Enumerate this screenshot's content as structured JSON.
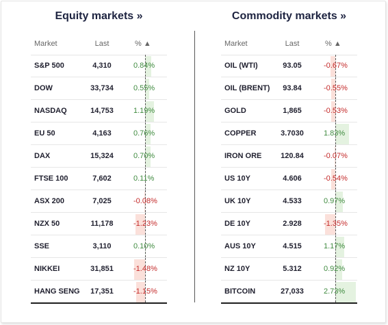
{
  "equity": {
    "title": "Equity markets »",
    "headers": {
      "market": "Market",
      "last": "Last",
      "pct": "% ▲"
    },
    "rows": [
      {
        "market": "S&P 500",
        "last": "4,310",
        "pct": "0.84%",
        "value": 0.84
      },
      {
        "market": "DOW",
        "last": "33,734",
        "pct": "0.55%",
        "value": 0.55
      },
      {
        "market": "NASDAQ",
        "last": "14,753",
        "pct": "1.19%",
        "value": 1.19
      },
      {
        "market": "EU 50",
        "last": "4,163",
        "pct": "0.76%",
        "value": 0.76
      },
      {
        "market": "DAX",
        "last": "15,324",
        "pct": "0.70%",
        "value": 0.7
      },
      {
        "market": "FTSE 100",
        "last": "7,602",
        "pct": "0.11%",
        "value": 0.11
      },
      {
        "market": "ASX 200",
        "last": "7,025",
        "pct": "-0.08%",
        "value": -0.08
      },
      {
        "market": "NZX 50",
        "last": "11,178",
        "pct": "-1.23%",
        "value": -1.23
      },
      {
        "market": "SSE",
        "last": "3,110",
        "pct": "0.10%",
        "value": 0.1
      },
      {
        "market": "NIKKEI",
        "last": "31,851",
        "pct": "-1.48%",
        "value": -1.48
      },
      {
        "market": "HANG SENG",
        "last": "17,351",
        "pct": "-1.15%",
        "value": -1.15
      }
    ]
  },
  "commodity": {
    "title": "Commodity markets »",
    "headers": {
      "market": "Market",
      "last": "Last",
      "pct": "% ▲"
    },
    "rows": [
      {
        "market": "OIL (WTI)",
        "last": "93.05",
        "pct": "-0.67%",
        "value": -0.67
      },
      {
        "market": "OIL (BRENT)",
        "last": "93.84",
        "pct": "-0.55%",
        "value": -0.55
      },
      {
        "market": "GOLD",
        "last": "1,865",
        "pct": "-0.53%",
        "value": -0.53
      },
      {
        "market": "COPPER",
        "last": "3.7030",
        "pct": "1.83%",
        "value": 1.83
      },
      {
        "market": "IRON ORE",
        "last": "120.84",
        "pct": "-0.07%",
        "value": -0.07
      },
      {
        "market": "US 10Y",
        "last": "4.606",
        "pct": "-0.54%",
        "value": -0.54
      },
      {
        "market": "UK 10Y",
        "last": "4.533",
        "pct": "0.97%",
        "value": 0.97
      },
      {
        "market": "DE 10Y",
        "last": "2.928",
        "pct": "-1.35%",
        "value": -1.35
      },
      {
        "market": "AUS 10Y",
        "last": "4.515",
        "pct": "1.17%",
        "value": 1.17
      },
      {
        "market": "NZ 10Y",
        "last": "5.312",
        "pct": "0.92%",
        "value": 0.92
      },
      {
        "market": "BITCOIN",
        "last": "27,033",
        "pct": "2.73%",
        "value": 2.73
      }
    ]
  },
  "colors": {
    "positive": "#3f8a3f",
    "negative": "#c42a2a",
    "positive_bg": "#e4f2e0",
    "negative_bg": "#fbe0da"
  }
}
